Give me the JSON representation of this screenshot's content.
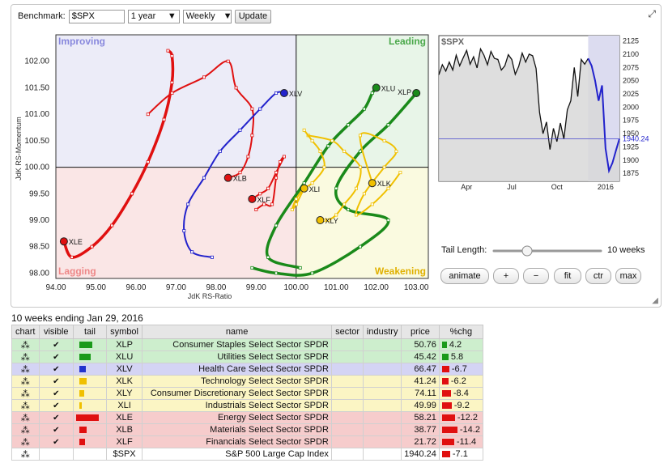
{
  "toolbar": {
    "benchmark_label": "Benchmark:",
    "benchmark_value": "$SPX",
    "period": "1 year",
    "frequency": "Weekly",
    "update_label": "Update"
  },
  "rrg": {
    "quadrants": {
      "improving": "Improving",
      "leading": "Leading",
      "lagging": "Lagging",
      "weakening": "Weakening"
    },
    "xlabel": "JdK RS-Ratio",
    "ylabel": "JdK RS-Momentum",
    "xticks": [
      "94.00",
      "95.00",
      "96.00",
      "97.00",
      "98.00",
      "99.00",
      "100.00",
      "101.00",
      "102.00",
      "103.00"
    ],
    "yticks": [
      "102.00",
      "101.50",
      "101.00",
      "100.50",
      "100.00",
      "99.50",
      "99.00",
      "98.50",
      "98.00"
    ]
  },
  "mini": {
    "title": "$SPX",
    "xticks": [
      "Apr",
      "Jul",
      "Oct",
      "2016"
    ],
    "yticks": [
      "2125",
      "2100",
      "2075",
      "2050",
      "2025",
      "2000",
      "1975",
      "1950",
      "1925",
      "1900",
      "1875"
    ],
    "last_value": "1940.24"
  },
  "controls": {
    "tail_label": "Tail Length:",
    "tail_value": "10 weeks",
    "animate": "animate",
    "plus": "+",
    "minus": "−",
    "fit": "fit",
    "ctr": "ctr",
    "max": "max"
  },
  "caption": "10 weeks ending Jan 29, 2016",
  "table": {
    "headers": [
      "chart",
      "visible",
      "tail",
      "symbol",
      "name",
      "sector",
      "industry",
      "price",
      "%chg"
    ],
    "rows": [
      {
        "symbol": "XLP",
        "name": "Consumer Staples Select Sector SPDR",
        "price": "50.76",
        "chg": "4.2",
        "bg": "#cdeecd",
        "tail_color": "#1a9a1a",
        "chg_color": "#1a9a1a"
      },
      {
        "symbol": "XLU",
        "name": "Utilities Select Sector SPDR",
        "price": "45.42",
        "chg": "5.8",
        "bg": "#cdeecd",
        "tail_color": "#1a9a1a",
        "chg_color": "#1a9a1a"
      },
      {
        "symbol": "XLV",
        "name": "Health Care Select Sector SPDR",
        "price": "66.47",
        "chg": "-6.7",
        "bg": "#d4d4f4",
        "tail_color": "#2233cc",
        "chg_color": "#e01010"
      },
      {
        "symbol": "XLK",
        "name": "Technology Select Sector SPDR",
        "price": "41.24",
        "chg": "-6.2",
        "bg": "#fbf5c4",
        "tail_color": "#f0c000",
        "chg_color": "#e01010"
      },
      {
        "symbol": "XLY",
        "name": "Consumer Discretionary Select Sector SPDR",
        "price": "74.11",
        "chg": "-8.4",
        "bg": "#fbf5c4",
        "tail_color": "#f0c000",
        "chg_color": "#e01010"
      },
      {
        "symbol": "XLI",
        "name": "Industrials Select Sector SPDR",
        "price": "49.99",
        "chg": "-9.2",
        "bg": "#fbf5c4",
        "tail_color": "#f0c000",
        "chg_color": "#e01010"
      },
      {
        "symbol": "XLE",
        "name": "Energy Select Sector SPDR",
        "price": "58.21",
        "chg": "-12.2",
        "bg": "#f6cccc",
        "tail_color": "#e01010",
        "chg_color": "#e01010"
      },
      {
        "symbol": "XLB",
        "name": "Materials Select Sector SPDR",
        "price": "38.77",
        "chg": "-14.2",
        "bg": "#f6cccc",
        "tail_color": "#e01010",
        "chg_color": "#e01010"
      },
      {
        "symbol": "XLF",
        "name": "Financials Select Sector SPDR",
        "price": "21.72",
        "chg": "-11.4",
        "bg": "#f6cccc",
        "tail_color": "#e01010",
        "chg_color": "#e01010"
      },
      {
        "symbol": "$SPX",
        "name": "S&P 500 Large Cap Index",
        "price": "1940.24",
        "chg": "-7.1",
        "bg": "#ffffff",
        "tail_color": "",
        "chg_color": "#e01010"
      }
    ]
  },
  "chart_data": [
    {
      "type": "scatter",
      "xlabel": "JdK RS-Ratio",
      "ylabel": "JdK RS-Momentum",
      "xlim": [
        94.0,
        103.3
      ],
      "ylim": [
        97.9,
        102.5
      ],
      "series": [
        {
          "name": "XLE",
          "color": "#e01010",
          "points": [
            [
              96.8,
              102.2
            ],
            [
              96.9,
              102.1
            ],
            [
              96.9,
              101.6
            ],
            [
              96.7,
              100.9
            ],
            [
              96.3,
              100.1
            ],
            [
              95.9,
              99.5
            ],
            [
              95.4,
              98.9
            ],
            [
              94.9,
              98.5
            ],
            [
              94.4,
              98.3
            ],
            [
              94.2,
              98.6
            ]
          ]
        },
        {
          "name": "XLB",
          "color": "#e01010",
          "points": [
            [
              96.3,
              101.0
            ],
            [
              96.9,
              101.4
            ],
            [
              97.7,
              101.7
            ],
            [
              98.3,
              102.0
            ],
            [
              98.5,
              101.5
            ],
            [
              98.9,
              101.1
            ],
            [
              98.9,
              100.6
            ],
            [
              98.8,
              100.2
            ],
            [
              98.6,
              99.9
            ],
            [
              98.3,
              99.8
            ]
          ]
        },
        {
          "name": "XLF",
          "color": "#e01010",
          "points": [
            [
              99.0,
              99.2
            ],
            [
              99.2,
              99.3
            ],
            [
              99.4,
              99.3
            ],
            [
              99.5,
              99.8
            ],
            [
              99.6,
              100.1
            ],
            [
              99.7,
              100.2
            ],
            [
              99.5,
              99.9
            ],
            [
              99.3,
              99.6
            ],
            [
              99.1,
              99.5
            ],
            [
              98.9,
              99.4
            ]
          ]
        },
        {
          "name": "XLV",
          "color": "#2222cc",
          "points": [
            [
              97.9,
              98.3
            ],
            [
              97.4,
              98.4
            ],
            [
              97.2,
              98.8
            ],
            [
              97.3,
              99.3
            ],
            [
              97.7,
              99.8
            ],
            [
              98.1,
              100.3
            ],
            [
              98.6,
              100.7
            ],
            [
              99.1,
              101.1
            ],
            [
              99.5,
              101.4
            ],
            [
              99.7,
              101.4
            ]
          ]
        },
        {
          "name": "XLP",
          "color": "#1a8a1a",
          "points": [
            [
              98.9,
              98.1
            ],
            [
              99.5,
              98.0
            ],
            [
              100.4,
              98.0
            ],
            [
              101.6,
              98.5
            ],
            [
              102.3,
              99.0
            ],
            [
              101.3,
              99.2
            ],
            [
              101.0,
              99.6
            ],
            [
              101.6,
              100.3
            ],
            [
              102.3,
              100.8
            ],
            [
              103.0,
              101.4
            ]
          ]
        },
        {
          "name": "XLU",
          "color": "#1a8a1a",
          "points": [
            [
              100.1,
              98.1
            ],
            [
              99.3,
              98.3
            ],
            [
              99.5,
              98.9
            ],
            [
              100.2,
              99.7
            ],
            [
              100.8,
              100.4
            ],
            [
              101.3,
              100.8
            ],
            [
              101.7,
              101.1
            ],
            [
              101.9,
              101.4
            ],
            [
              102.0,
              101.5
            ],
            [
              102.0,
              101.5
            ]
          ]
        },
        {
          "name": "XLK",
          "color": "#f0c000",
          "points": [
            [
              102.6,
              99.9
            ],
            [
              102.3,
              99.6
            ],
            [
              101.9,
              99.3
            ],
            [
              101.5,
              99.1
            ],
            [
              101.7,
              99.5
            ],
            [
              102.2,
              100.0
            ],
            [
              102.5,
              100.3
            ],
            [
              102.2,
              100.5
            ],
            [
              101.6,
              100.6
            ],
            [
              101.9,
              99.7
            ]
          ]
        },
        {
          "name": "XLY",
          "color": "#f0c000",
          "points": [
            [
              100.3,
              100.6
            ],
            [
              100.9,
              100.5
            ],
            [
              101.2,
              100.3
            ],
            [
              101.6,
              100.0
            ],
            [
              101.5,
              99.6
            ],
            [
              101.2,
              99.3
            ],
            [
              101.0,
              99.1
            ],
            [
              100.8,
              99.0
            ],
            [
              100.7,
              99.0
            ],
            [
              100.6,
              99.0
            ]
          ]
        },
        {
          "name": "XLI",
          "color": "#f0c000",
          "points": [
            [
              100.2,
              100.7
            ],
            [
              100.4,
              100.5
            ],
            [
              100.6,
              100.3
            ],
            [
              100.7,
              100.0
            ],
            [
              100.4,
              99.7
            ],
            [
              100.2,
              99.6
            ],
            [
              100.0,
              99.4
            ],
            [
              99.9,
              99.2
            ],
            [
              100.0,
              99.3
            ],
            [
              100.2,
              99.6
            ]
          ]
        }
      ]
    },
    {
      "type": "line",
      "title": "$SPX",
      "ylim": [
        1860,
        2135
      ],
      "x": [
        0,
        1,
        2,
        3,
        4,
        5,
        6,
        7,
        8,
        9,
        10,
        11,
        12,
        13,
        14,
        15,
        16,
        17,
        18,
        19,
        20,
        21,
        22,
        23,
        24,
        25,
        26,
        27,
        28,
        29,
        30,
        31,
        32,
        33,
        34,
        35,
        36,
        37,
        38,
        39,
        40,
        41,
        42,
        43,
        44,
        45,
        46,
        47,
        48,
        49,
        50,
        51,
        52
      ],
      "values": [
        2061,
        2080,
        2068,
        2085,
        2070,
        2098,
        2078,
        2093,
        2107,
        2081,
        2095,
        2074,
        2110,
        2098,
        2080,
        2105,
        2092,
        2090,
        2070,
        2078,
        2099,
        2090,
        2062,
        2077,
        2102,
        2085,
        2100,
        2097,
        2073,
        1990,
        1950,
        1972,
        1920,
        1960,
        1935,
        1970,
        1940,
        1995,
        2012,
        2075,
        2020,
        2090,
        2081,
        2092,
        2078,
        2050,
        2012,
        2041,
        1922,
        1880,
        1895,
        1918,
        1940.24
      ],
      "highlight_from_index": 43,
      "xticks": [
        "Apr",
        "Jul",
        "Oct",
        "2016"
      ]
    }
  ]
}
